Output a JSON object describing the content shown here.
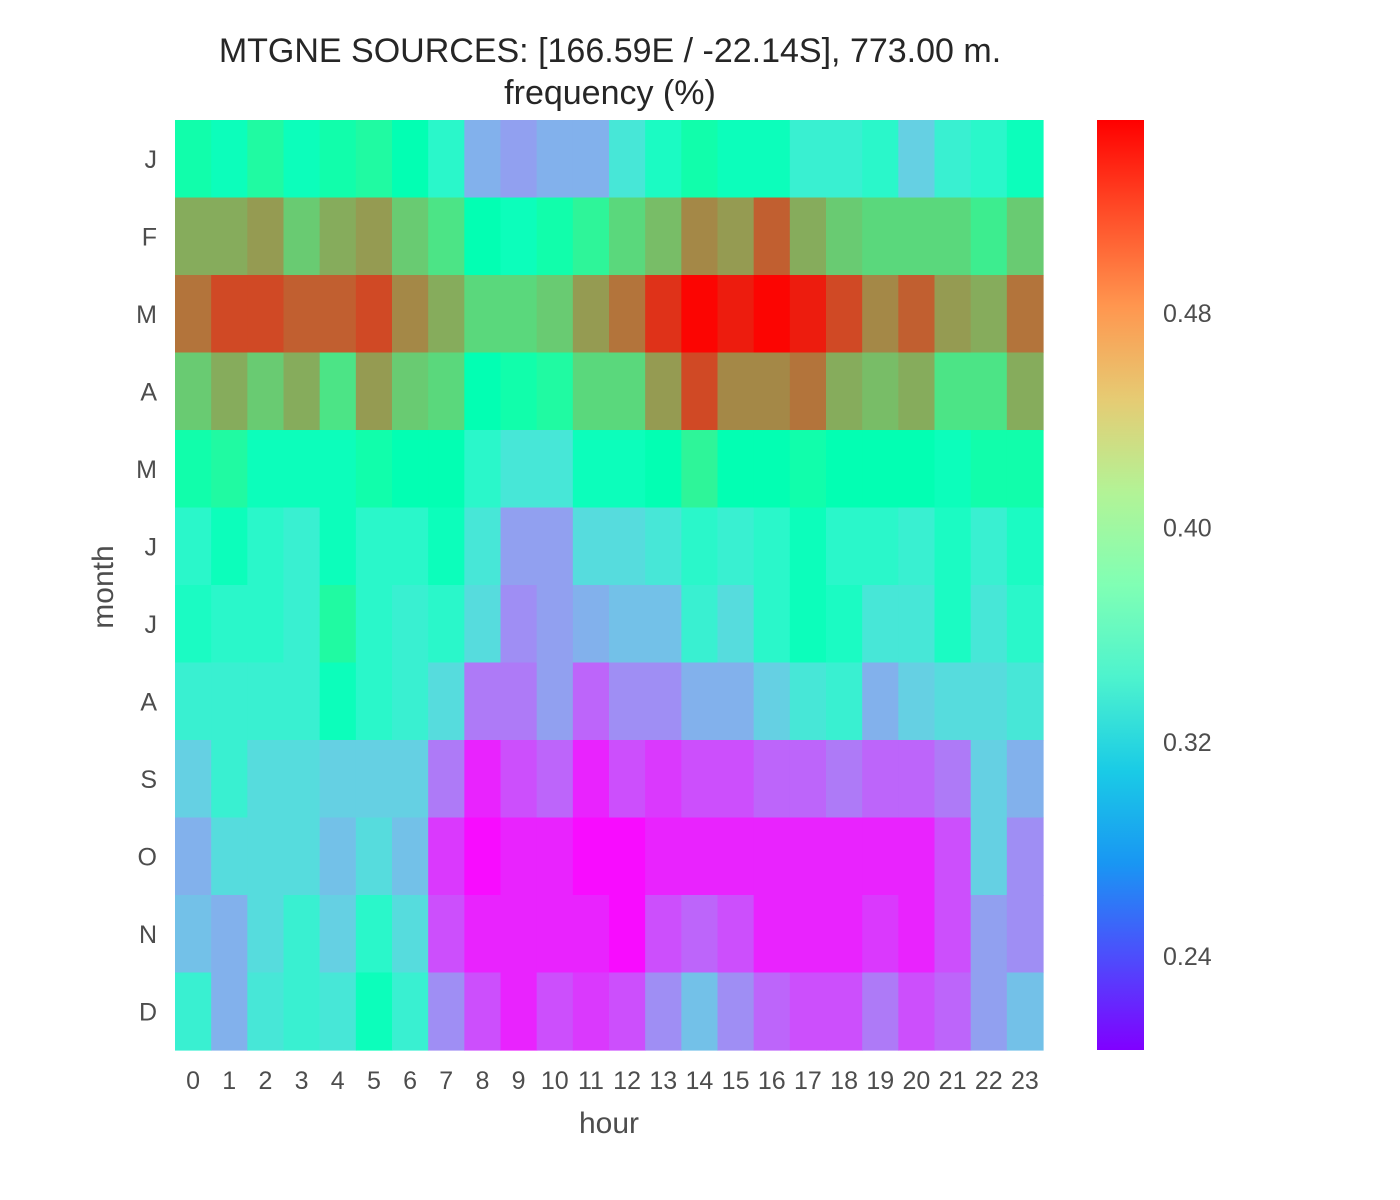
{
  "chart_data": {
    "type": "heatmap",
    "title_line1": "MTGNE SOURCES: [166.59E / -22.14S], 773.00 m.",
    "title_line2": "frequency (%)",
    "xlabel": "hour",
    "ylabel": "month",
    "x_categories": [
      "0",
      "1",
      "2",
      "3",
      "4",
      "5",
      "6",
      "7",
      "8",
      "9",
      "10",
      "11",
      "12",
      "13",
      "14",
      "15",
      "16",
      "17",
      "18",
      "19",
      "20",
      "21",
      "22",
      "23"
    ],
    "y_categories": [
      "J",
      "F",
      "M",
      "A",
      "M",
      "J",
      "J",
      "A",
      "S",
      "O",
      "N",
      "D"
    ],
    "colorbar": {
      "min": 0.205,
      "max": 0.552,
      "ticks": [
        0.24,
        0.32,
        0.4,
        0.48
      ],
      "tick_labels": [
        "0.24",
        "0.32",
        "0.40",
        "0.48"
      ],
      "colormap": "rainbow"
    },
    "values": [
      [
        0.39,
        0.37,
        0.4,
        0.37,
        0.39,
        0.4,
        0.38,
        0.35,
        0.29,
        0.28,
        0.29,
        0.29,
        0.33,
        0.36,
        0.39,
        0.37,
        0.37,
        0.34,
        0.34,
        0.35,
        0.31,
        0.34,
        0.35,
        0.37
      ],
      [
        0.47,
        0.47,
        0.48,
        0.45,
        0.47,
        0.48,
        0.45,
        0.43,
        0.38,
        0.37,
        0.39,
        0.41,
        0.44,
        0.46,
        0.49,
        0.48,
        0.51,
        0.47,
        0.45,
        0.44,
        0.44,
        0.44,
        0.42,
        0.45
      ],
      [
        0.5,
        0.52,
        0.52,
        0.51,
        0.51,
        0.52,
        0.49,
        0.47,
        0.44,
        0.44,
        0.45,
        0.48,
        0.5,
        0.53,
        0.55,
        0.54,
        0.55,
        0.54,
        0.52,
        0.49,
        0.51,
        0.48,
        0.47,
        0.5
      ],
      [
        0.45,
        0.47,
        0.45,
        0.47,
        0.43,
        0.48,
        0.45,
        0.44,
        0.38,
        0.39,
        0.4,
        0.44,
        0.44,
        0.48,
        0.52,
        0.49,
        0.49,
        0.5,
        0.47,
        0.46,
        0.47,
        0.43,
        0.43,
        0.47
      ],
      [
        0.39,
        0.4,
        0.37,
        0.37,
        0.37,
        0.39,
        0.38,
        0.38,
        0.35,
        0.33,
        0.33,
        0.37,
        0.37,
        0.38,
        0.41,
        0.38,
        0.38,
        0.39,
        0.38,
        0.38,
        0.38,
        0.37,
        0.39,
        0.39
      ],
      [
        0.35,
        0.37,
        0.35,
        0.34,
        0.37,
        0.35,
        0.35,
        0.37,
        0.33,
        0.28,
        0.28,
        0.32,
        0.32,
        0.33,
        0.35,
        0.34,
        0.35,
        0.37,
        0.35,
        0.35,
        0.34,
        0.36,
        0.34,
        0.36
      ],
      [
        0.36,
        0.35,
        0.35,
        0.34,
        0.4,
        0.35,
        0.34,
        0.35,
        0.32,
        0.27,
        0.28,
        0.29,
        0.3,
        0.3,
        0.34,
        0.32,
        0.35,
        0.37,
        0.36,
        0.33,
        0.33,
        0.36,
        0.33,
        0.35
      ],
      [
        0.34,
        0.34,
        0.34,
        0.34,
        0.37,
        0.35,
        0.34,
        0.32,
        0.26,
        0.26,
        0.28,
        0.25,
        0.27,
        0.27,
        0.29,
        0.29,
        0.31,
        0.33,
        0.34,
        0.29,
        0.31,
        0.32,
        0.32,
        0.33
      ],
      [
        0.31,
        0.34,
        0.32,
        0.32,
        0.31,
        0.31,
        0.31,
        0.26,
        0.22,
        0.24,
        0.25,
        0.22,
        0.24,
        0.23,
        0.24,
        0.24,
        0.25,
        0.25,
        0.26,
        0.25,
        0.25,
        0.26,
        0.31,
        0.29
      ],
      [
        0.29,
        0.32,
        0.32,
        0.32,
        0.3,
        0.32,
        0.3,
        0.23,
        0.21,
        0.22,
        0.22,
        0.21,
        0.21,
        0.22,
        0.22,
        0.22,
        0.22,
        0.22,
        0.22,
        0.22,
        0.22,
        0.24,
        0.31,
        0.27
      ],
      [
        0.3,
        0.29,
        0.32,
        0.34,
        0.31,
        0.35,
        0.32,
        0.24,
        0.22,
        0.22,
        0.22,
        0.22,
        0.21,
        0.24,
        0.25,
        0.24,
        0.22,
        0.22,
        0.22,
        0.23,
        0.22,
        0.24,
        0.28,
        0.27
      ],
      [
        0.34,
        0.29,
        0.33,
        0.34,
        0.33,
        0.37,
        0.34,
        0.27,
        0.24,
        0.22,
        0.24,
        0.23,
        0.24,
        0.27,
        0.3,
        0.27,
        0.25,
        0.24,
        0.24,
        0.26,
        0.24,
        0.25,
        0.28,
        0.3
      ]
    ]
  }
}
